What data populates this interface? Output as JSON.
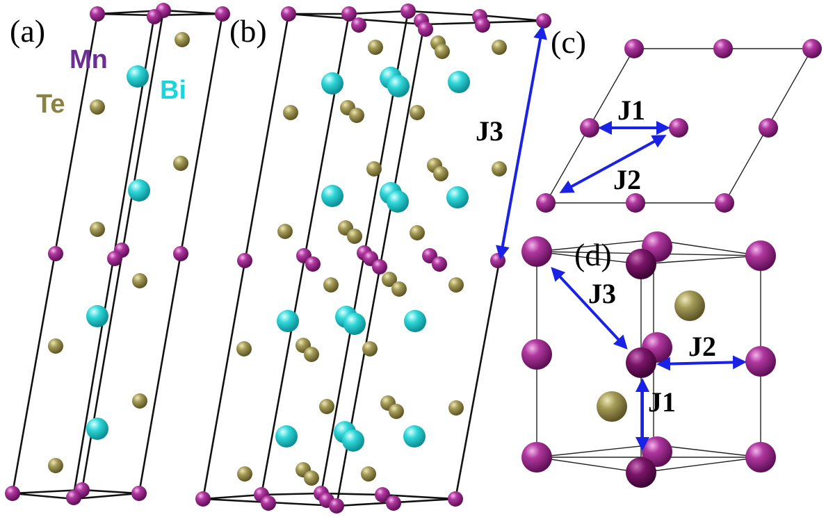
{
  "panels": {
    "a": "(a)",
    "b": "(b)",
    "c": "(c)",
    "d": "(d)"
  },
  "legend": {
    "mn": "Mn",
    "bi": "Bi",
    "te": "Te"
  },
  "exchange_labels": {
    "j1": "J1",
    "j2": "J2",
    "j3": "J3"
  },
  "colors": {
    "mn": "#9b2a8f",
    "bi": "#27d3d6",
    "te": "#9b9150",
    "arrow": "#1a22e6",
    "mn_text": "#6b2f91",
    "bi_text": "#19d6dc",
    "te_text": "#8a8243"
  }
}
